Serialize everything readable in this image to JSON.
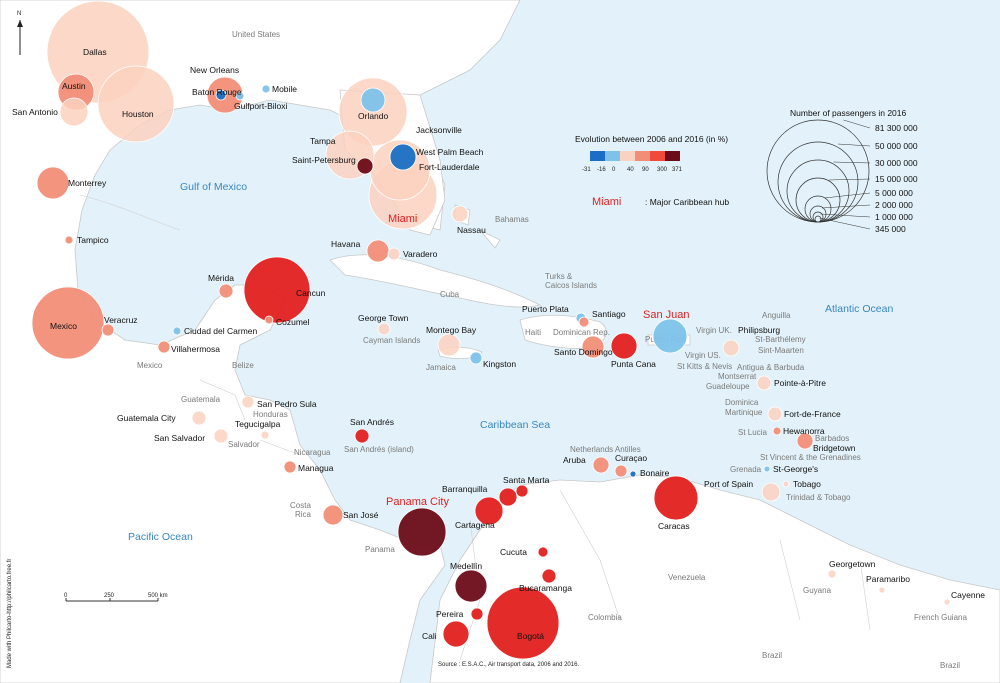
{
  "colors": {
    "sea": "#e3f2fa",
    "land": "#ffffff",
    "border": "#c8c8c8",
    "ocean_label": "#3a86c0",
    "hub_label": "#e02020",
    "scale": [
      "#1a6fc4",
      "#7ec2ea",
      "#fbd1c0",
      "#f28e78",
      "#ef4a3a",
      "#e2201f",
      "#6b0c18"
    ]
  },
  "north_label": "N",
  "oceans": {
    "gulf": "Gulf of Mexico",
    "atlantic": "Atlantic Ocean",
    "caribbean": "Caribbean Sea",
    "pacific": "Pacific Ocean"
  },
  "countries": {
    "us": "United States",
    "bahamas": "Bahamas",
    "turks": "Turks &",
    "turks2": "Caicos Islands",
    "cuba": "Cuba",
    "haiti": "Haiti",
    "dominican": "Dominican Rep.",
    "puertorico": "Puerto Rico",
    "cayman": "Cayman Islands",
    "jamaica": "Jamaica",
    "mexico": "Mexico",
    "belize": "Belize",
    "guatemala": "Guatemala",
    "honduras": "Honduras",
    "salvador": "Salvador",
    "nicaragua": "Nicaragua",
    "costa": "Costa",
    "rica": "Rica",
    "panama": "Panama",
    "sanandres_isl": "San Andrés (island)",
    "nl_antilles": "Netherlands Antilles",
    "colombia": "Colombia",
    "venezuela": "Venezuela",
    "guyana": "Guyana",
    "french_guiana": "French Guiana",
    "brazil": "Brazil",
    "brazil2": "Brazil",
    "virgin_uk": "Virgin UK.",
    "virgin_us": "Virgin US.",
    "kitts": "St Kitts & Nevis",
    "anguilla": "Anguilla",
    "barth": "St-Barthélemy",
    "sintmaarten": "Sint-Maarten",
    "antigua": "Antigua & Barbuda",
    "montserrat": "Montserrat",
    "guadeloupe": "Guadeloupe",
    "dominica": "Dominica",
    "martinique": "Martinique",
    "stlucia": "St Lucia",
    "barbados": "Barbados",
    "vincent": "St Vincent & the Grenadines",
    "grenada": "Grenada",
    "trinidad": "Trinidad & Tobago"
  },
  "cities": [
    {
      "name": "Dallas",
      "r": 51,
      "c": 2
    },
    {
      "name": "Houston",
      "r": 38,
      "c": 2
    },
    {
      "name": "Austin",
      "r": 18,
      "c": 3
    },
    {
      "name": "San Antonio",
      "r": 14,
      "c": 2
    },
    {
      "name": "Monterrey",
      "r": 16,
      "c": 3
    },
    {
      "name": "Tampico",
      "r": 4,
      "c": 3
    },
    {
      "name": "Mexico",
      "r": 36,
      "c": 3
    },
    {
      "name": "Veracruz",
      "r": 6,
      "c": 3
    },
    {
      "name": "New Orleans",
      "r": 18,
      "c": 3
    },
    {
      "name": "Baton Rouge",
      "r": 5,
      "c": 0
    },
    {
      "name": "Gulfport-Biloxi",
      "r": 4,
      "c": 1
    },
    {
      "name": "Mobile",
      "r": 4,
      "c": 1
    },
    {
      "name": "Jacksonville",
      "r": 12,
      "c": 1
    },
    {
      "name": "Orlando",
      "r": 34,
      "c": 2
    },
    {
      "name": "Tampa",
      "r": 24,
      "c": 2
    },
    {
      "name": "Saint-Petersburg",
      "r": 8,
      "c": 6
    },
    {
      "name": "West Palm Beach",
      "r": 13,
      "c": 0
    },
    {
      "name": "Fort-Lauderdale",
      "r": 30,
      "c": 2
    },
    {
      "name": "Miami",
      "r": 34,
      "c": 2,
      "hub": true
    },
    {
      "name": "Nassau",
      "r": 8,
      "c": 2
    },
    {
      "name": "Havana",
      "r": 11,
      "c": 3
    },
    {
      "name": "Varadero",
      "r": 6,
      "c": 2
    },
    {
      "name": "Cancun",
      "r": 33,
      "c": 5
    },
    {
      "name": "Mérida",
      "r": 7,
      "c": 3
    },
    {
      "name": "Cozumel",
      "r": 4,
      "c": 3
    },
    {
      "name": "Ciudad del Carmen",
      "r": 4,
      "c": 1
    },
    {
      "name": "Villahermosa",
      "r": 6,
      "c": 3
    },
    {
      "name": "George Town",
      "r": 6,
      "c": 2
    },
    {
      "name": "Montego Bay",
      "r": 11,
      "c": 2
    },
    {
      "name": "Kingston",
      "r": 6,
      "c": 1
    },
    {
      "name": "Puerto Plata",
      "r": 5,
      "c": 1
    },
    {
      "name": "Santiago",
      "r": 5,
      "c": 3
    },
    {
      "name": "Santo Domingo",
      "r": 11,
      "c": 3
    },
    {
      "name": "Punta Cana",
      "r": 13,
      "c": 5
    },
    {
      "name": "San Juan",
      "r": 17,
      "c": 1,
      "hub": true
    },
    {
      "name": "Philipsburg",
      "r": 8,
      "c": 2
    },
    {
      "name": "Pointe-à-Pitre",
      "r": 7,
      "c": 2
    },
    {
      "name": "Fort-de-France",
      "r": 7,
      "c": 2
    },
    {
      "name": "Hewanorra",
      "r": 4,
      "c": 3
    },
    {
      "name": "Bridgetown",
      "r": 8,
      "c": 3
    },
    {
      "name": "St-George's",
      "r": 3,
      "c": 1
    },
    {
      "name": "Tobago",
      "r": 3,
      "c": 2
    },
    {
      "name": "Port of Spain",
      "r": 9,
      "c": 2
    },
    {
      "name": "Caracas",
      "r": 22,
      "c": 5
    },
    {
      "name": "Aruba",
      "r": 8,
      "c": 3
    },
    {
      "name": "Curaçao",
      "r": 6,
      "c": 3
    },
    {
      "name": "Bonaire",
      "r": 3,
      "c": 0
    },
    {
      "name": "San Pedro Sula",
      "r": 6,
      "c": 2
    },
    {
      "name": "Guatemala City",
      "r": 7,
      "c": 2
    },
    {
      "name": "Tegucigalpa",
      "r": 4,
      "c": 2
    },
    {
      "name": "San Salvador",
      "r": 7,
      "c": 2
    },
    {
      "name": "Managua",
      "r": 6,
      "c": 3
    },
    {
      "name": "San José",
      "r": 10,
      "c": 3
    },
    {
      "name": "San Andrés",
      "r": 7,
      "c": 5
    },
    {
      "name": "Panama City",
      "r": 24,
      "c": 6,
      "hub": true
    },
    {
      "name": "Barranquilla",
      "r": 9,
      "c": 5
    },
    {
      "name": "Santa Marta",
      "r": 6,
      "c": 5
    },
    {
      "name": "Cartagena",
      "r": 14,
      "c": 5
    },
    {
      "name": "Cucuta",
      "r": 5,
      "c": 5
    },
    {
      "name": "Medellín",
      "r": 16,
      "c": 6
    },
    {
      "name": "Bucaramanga",
      "r": 7,
      "c": 5
    },
    {
      "name": "Pereira",
      "r": 6,
      "c": 5
    },
    {
      "name": "Cali",
      "r": 13,
      "c": 5
    },
    {
      "name": "Bogotá",
      "r": 36,
      "c": 5
    },
    {
      "name": "Georgetown",
      "r": 4,
      "c": 2
    },
    {
      "name": "Paramaribo",
      "r": 3,
      "c": 2
    },
    {
      "name": "Cayenne",
      "r": 3,
      "c": 2
    }
  ],
  "legend": {
    "evolution_title": "Evolution between 2006 and 2016 (in %)",
    "evolution_ticks": [
      "-31",
      "-16",
      "0",
      "40",
      "90",
      "300",
      "371"
    ],
    "hub_word": "Miami",
    "hub_desc": ": Major Caribbean hub",
    "size_title": "Number of passengers in 2016",
    "size_values": [
      "81 300 000",
      "50 000 000",
      "30 000 000",
      "15 000 000",
      "5 000 000",
      "2 000 000",
      "1 000 000",
      "345 000"
    ]
  },
  "scale_bar": {
    "ticks": [
      "0",
      "250",
      "500 km"
    ]
  },
  "source": "Source : E.S.A.C., Air transport data, 2006 and 2016.",
  "credit": "Made with Philcarto-http://philcarto.free.fr"
}
